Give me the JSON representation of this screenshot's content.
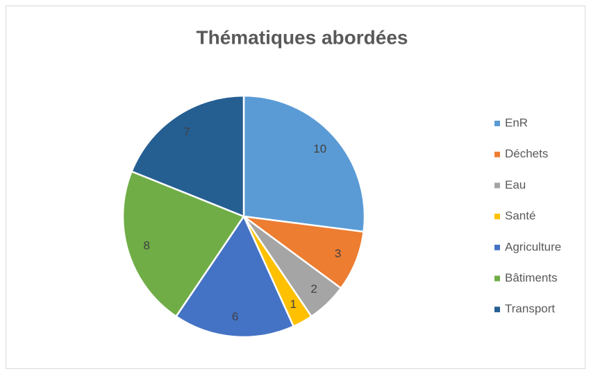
{
  "chart_data": {
    "type": "pie",
    "title": "Thématiques abordées",
    "categories": [
      "EnR",
      "Déchets",
      "Eau",
      "Santé",
      "Agriculture",
      "Bâtiments",
      "Transport"
    ],
    "values": [
      10,
      3,
      2,
      1,
      6,
      8,
      7
    ],
    "colors": [
      "#5b9bd5",
      "#ed7d31",
      "#a5a5a5",
      "#ffc000",
      "#4472c4",
      "#70ad47",
      "#255e91"
    ],
    "legend": "right"
  }
}
